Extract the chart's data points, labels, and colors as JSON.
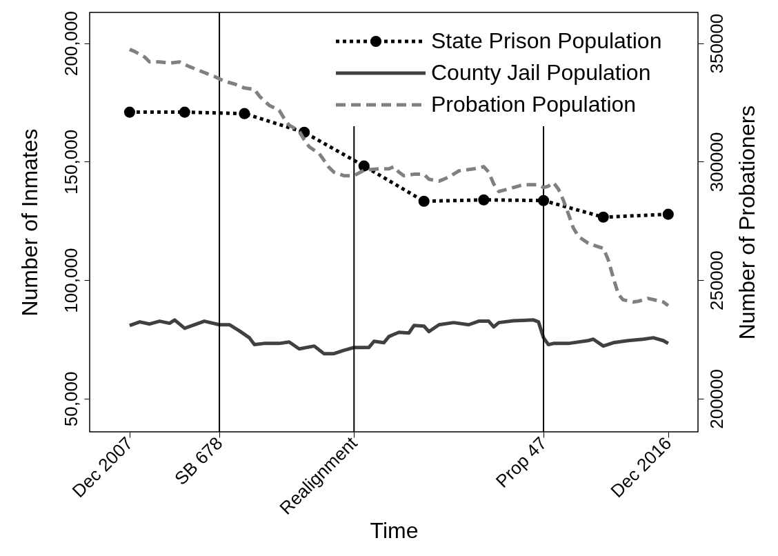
{
  "chart_data": {
    "type": "line",
    "xlabel": "Time",
    "ylabel": "Number of Inmates",
    "y2label": "Number of Probationers",
    "legend": "top right",
    "xlim": [
      "2007-04",
      "2017-06"
    ],
    "xticks": [
      {
        "value": "2007-12",
        "label": "Dec 2007"
      },
      {
        "value": "2009-06",
        "label": "SB 678"
      },
      {
        "value": "2011-09",
        "label": "Realignment"
      },
      {
        "value": "2014-11",
        "label": "Prop 47"
      },
      {
        "value": "2016-12",
        "label": "Dec 2016"
      }
    ],
    "ylim": [
      36000,
      213000
    ],
    "yticks": [
      {
        "value": 50000,
        "label": "50,000"
      },
      {
        "value": 100000,
        "label": "100,000"
      },
      {
        "value": 150000,
        "label": "150,000"
      },
      {
        "value": 200000,
        "label": "200,000"
      }
    ],
    "y2lim": [
      186000,
      363000
    ],
    "y2ticks": [
      200000,
      250000,
      300000,
      350000
    ],
    "ref_lines": [
      {
        "axis": "x",
        "value": "2009-06",
        "color": "#000000"
      },
      {
        "axis": "x",
        "value": "2011-09",
        "color": "#000000"
      },
      {
        "axis": "x",
        "value": "2014-11",
        "color": "#000000"
      }
    ],
    "series": [
      {
        "name": "State Prison Population",
        "color": "#000000",
        "line_style": "dotted",
        "marker": "circle",
        "x": [
          "2007-12",
          "2008-11",
          "2009-11",
          "2010-11",
          "2011-11",
          "2012-11",
          "2013-11",
          "2014-11",
          "2015-11",
          "2016-12"
        ],
        "values": [
          170900,
          170900,
          170300,
          162400,
          148200,
          133300,
          133900,
          133600,
          126600,
          127800
        ]
      },
      {
        "name": "County Jail Population",
        "color": "#404040",
        "line_style": "solid",
        "marker": "none",
        "x": [
          "2007-12",
          "2008-02",
          "2008-04",
          "2008-06",
          "2008-08",
          "2008-09",
          "2008-11",
          "2009-03",
          "2009-06",
          "2009-08",
          "2009-10",
          "2009-12",
          "2010-01",
          "2010-03",
          "2010-06",
          "2010-08",
          "2010-10",
          "2011-01",
          "2011-03",
          "2011-05",
          "2011-07",
          "2011-09",
          "2011-12",
          "2012-01",
          "2012-03",
          "2012-04",
          "2012-05",
          "2012-06",
          "2012-08",
          "2012-09",
          "2012-11",
          "2012-12",
          "2013-02",
          "2013-05",
          "2013-08",
          "2013-10",
          "2013-12",
          "2014-01",
          "2014-02",
          "2014-05",
          "2014-09",
          "2014-10",
          "2014-11",
          "2014-12",
          "2015-01",
          "2015-04",
          "2015-08",
          "2015-09",
          "2015-11",
          "2016-01",
          "2016-04",
          "2016-07",
          "2016-09",
          "2016-11",
          "2016-12"
        ],
        "values": [
          80900,
          82400,
          81500,
          82700,
          81800,
          83200,
          79700,
          82700,
          81200,
          81200,
          78600,
          75700,
          72800,
          73300,
          73300,
          73900,
          71000,
          72200,
          69000,
          69000,
          70400,
          71600,
          71600,
          74200,
          73600,
          76200,
          77100,
          78000,
          77700,
          80900,
          80600,
          78300,
          81200,
          82100,
          81200,
          82700,
          82700,
          80300,
          82100,
          82900,
          83200,
          82400,
          75700,
          72800,
          73300,
          73300,
          74500,
          75100,
          72200,
          73600,
          74500,
          75100,
          75700,
          74500,
          73300
        ]
      },
      {
        "name": "Probation Population",
        "color": "#808080",
        "line_style": "dashed",
        "marker": "none",
        "axis": "y2",
        "x": [
          "2007-12",
          "2008-01",
          "2008-03",
          "2008-04",
          "2008-06",
          "2008-08",
          "2008-10",
          "2008-12",
          "2009-02",
          "2009-05",
          "2009-07",
          "2009-09",
          "2009-11",
          "2010-01",
          "2010-02",
          "2010-04",
          "2010-06",
          "2010-07",
          "2010-08",
          "2010-10",
          "2010-11",
          "2010-12",
          "2011-02",
          "2011-04",
          "2011-05",
          "2011-07",
          "2011-09",
          "2011-11",
          "2012-02",
          "2012-04",
          "2012-05",
          "2012-06",
          "2012-07",
          "2012-09",
          "2012-11",
          "2012-12",
          "2013-02",
          "2013-04",
          "2013-06",
          "2013-09",
          "2013-11",
          "2013-12",
          "2014-01",
          "2014-02",
          "2014-05",
          "2014-07",
          "2014-10",
          "2014-11",
          "2014-12",
          "2015-01",
          "2015-02",
          "2015-03",
          "2015-04",
          "2015-05",
          "2015-06",
          "2015-08",
          "2015-10",
          "2015-11",
          "2015-12",
          "2016-01",
          "2016-02",
          "2016-03",
          "2016-05",
          "2016-06",
          "2016-08",
          "2016-11",
          "2016-12"
        ],
        "values": [
          347400,
          346500,
          344200,
          342100,
          342100,
          341600,
          342100,
          340100,
          338400,
          336000,
          334000,
          332800,
          331100,
          330500,
          327600,
          323800,
          321700,
          318300,
          315400,
          313000,
          309200,
          306300,
          303400,
          297600,
          295600,
          294100,
          294100,
          296400,
          297000,
          297000,
          297900,
          295600,
          294100,
          294700,
          294700,
          292600,
          291800,
          293500,
          296100,
          297000,
          297900,
          295600,
          290600,
          287400,
          289100,
          290300,
          290300,
          289100,
          289700,
          291200,
          288300,
          283900,
          278100,
          272200,
          268500,
          265600,
          264100,
          263500,
          258600,
          251000,
          244000,
          241700,
          240800,
          241100,
          242300,
          240800,
          239300
        ]
      }
    ]
  }
}
